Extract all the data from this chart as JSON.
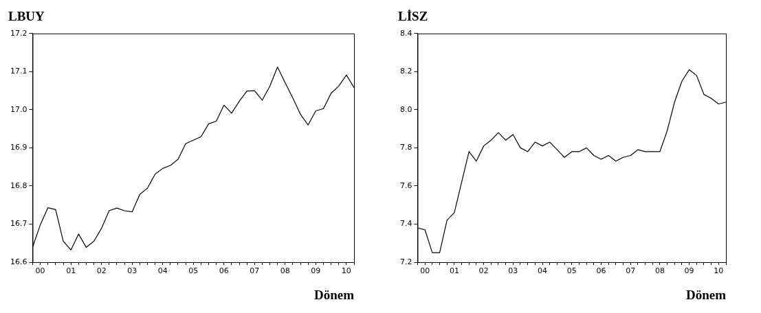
{
  "chart_data": [
    {
      "type": "line",
      "title": "LBUY",
      "xlabel": "Dönem",
      "categories": [
        null,
        "00",
        null,
        null,
        null,
        "01",
        null,
        null,
        null,
        "02",
        null,
        null,
        null,
        "03",
        null,
        null,
        null,
        "04",
        null,
        null,
        null,
        "05",
        null,
        null,
        null,
        "06",
        null,
        null,
        null,
        "07",
        null,
        null,
        null,
        "08",
        null,
        null,
        null,
        "09",
        null,
        null,
        null,
        "10",
        null
      ],
      "series": [
        {
          "color": "#000000",
          "values": [
            16.64,
            16.698,
            16.743,
            16.738,
            16.655,
            16.632,
            16.674,
            16.639,
            16.655,
            16.689,
            16.735,
            16.742,
            16.735,
            16.732,
            16.778,
            16.794,
            16.831,
            16.846,
            16.854,
            16.87,
            16.911,
            16.92,
            16.929,
            16.963,
            16.97,
            17.012,
            16.991,
            17.022,
            17.049,
            17.05,
            17.025,
            17.062,
            17.112,
            17.071,
            17.031,
            16.988,
            16.96,
            16.997,
            17.003,
            17.043,
            17.062,
            17.091,
            17.058
          ]
        }
      ],
      "ylim": [
        16.6,
        17.2
      ],
      "yticks": [
        {
          "value": 16.6,
          "label": "16.6"
        },
        {
          "value": 16.7,
          "label": "16.7"
        },
        {
          "value": 16.8,
          "label": "16.8"
        },
        {
          "value": 16.9,
          "label": "16.9"
        },
        {
          "value": 17.0,
          "label": "17.0"
        },
        {
          "value": 17.1,
          "label": "17.1"
        },
        {
          "value": 17.2,
          "label": "17.2"
        }
      ],
      "grid": false,
      "legend": false
    },
    {
      "type": "line",
      "title": "LİSZ",
      "xlabel": "Dönem",
      "categories": [
        null,
        "00",
        null,
        null,
        null,
        "01",
        null,
        null,
        null,
        "02",
        null,
        null,
        null,
        "03",
        null,
        null,
        null,
        "04",
        null,
        null,
        null,
        "05",
        null,
        null,
        null,
        "06",
        null,
        null,
        null,
        "07",
        null,
        null,
        null,
        "08",
        null,
        null,
        null,
        "09",
        null,
        null,
        null,
        "10",
        null
      ],
      "series": [
        {
          "color": "#000000",
          "values": [
            7.38,
            7.37,
            7.25,
            7.25,
            7.42,
            7.46,
            7.62,
            7.78,
            7.73,
            7.81,
            7.84,
            7.88,
            7.84,
            7.87,
            7.8,
            7.78,
            7.83,
            7.81,
            7.83,
            7.79,
            7.75,
            7.78,
            7.78,
            7.8,
            7.76,
            7.74,
            7.76,
            7.73,
            7.75,
            7.76,
            7.79,
            7.78,
            7.78,
            7.78,
            7.89,
            8.04,
            8.15,
            8.21,
            8.18,
            8.08,
            8.06,
            8.03,
            8.04
          ]
        }
      ],
      "ylim": [
        7.2,
        8.4
      ],
      "yticks": [
        {
          "value": 7.2,
          "label": "7.2"
        },
        {
          "value": 7.4,
          "label": "7.4"
        },
        {
          "value": 7.6,
          "label": "7.6"
        },
        {
          "value": 7.8,
          "label": "7.8"
        },
        {
          "value": 8.0,
          "label": "8.0"
        },
        {
          "value": 8.2,
          "label": "8.2"
        },
        {
          "value": 8.4,
          "label": "8.4"
        }
      ],
      "grid": false,
      "legend": false
    }
  ]
}
